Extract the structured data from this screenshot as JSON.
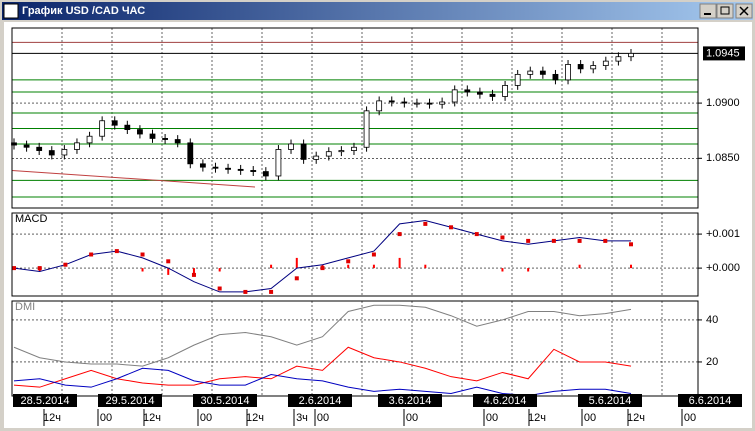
{
  "window": {
    "title": "График USD /CAD  ЧАС"
  },
  "chart_data": [
    {
      "type": "candlestick",
      "color": "#000000",
      "open": [
        1.0864,
        1.0862,
        1.086,
        1.0857,
        1.0853,
        1.0858,
        1.0864,
        1.087,
        1.0884,
        1.088,
        1.0876,
        1.0872,
        1.0868,
        1.0867,
        1.0864,
        1.0845,
        1.0842,
        1.0841,
        1.084,
        1.0839,
        1.0838,
        1.0834,
        1.0858,
        1.0863,
        1.0849,
        1.0852,
        1.0856,
        1.0857,
        1.086,
        1.0893,
        1.0902,
        1.0901,
        1.09,
        1.09,
        1.0899,
        1.0901,
        1.0912,
        1.091,
        1.0908,
        1.0906,
        1.0916,
        1.0926,
        1.0929,
        1.0926,
        1.0921,
        1.0935,
        1.0931,
        1.0934,
        1.0938,
        1.0942
      ],
      "high": [
        1.0868,
        1.0866,
        1.0864,
        1.0861,
        1.0862,
        1.0868,
        1.0874,
        1.0888,
        1.0888,
        1.0884,
        1.088,
        1.0876,
        1.0872,
        1.0871,
        1.0868,
        1.0849,
        1.0846,
        1.0845,
        1.0844,
        1.0843,
        1.0842,
        1.0862,
        1.0867,
        1.0867,
        1.0856,
        1.086,
        1.0861,
        1.0864,
        1.0897,
        1.0906,
        1.0906,
        1.0905,
        1.0904,
        1.0904,
        1.0905,
        1.0916,
        1.0916,
        1.0914,
        1.0912,
        1.092,
        1.093,
        1.0933,
        1.0933,
        1.093,
        1.0939,
        1.0939,
        1.0938,
        1.0942,
        1.0946,
        1.0949
      ],
      "low": [
        1.0858,
        1.0856,
        1.0853,
        1.0849,
        1.0849,
        1.0854,
        1.086,
        1.0866,
        1.0876,
        1.0872,
        1.0868,
        1.0864,
        1.0863,
        1.086,
        1.0841,
        1.0838,
        1.0837,
        1.0836,
        1.0835,
        1.0834,
        1.083,
        1.083,
        1.0854,
        1.0845,
        1.0845,
        1.0848,
        1.0852,
        1.0853,
        1.0856,
        1.0889,
        1.0897,
        1.0896,
        1.0896,
        1.0895,
        1.0895,
        1.0897,
        1.0906,
        1.0904,
        1.0902,
        1.0902,
        1.0912,
        1.0922,
        1.0922,
        1.0917,
        1.0917,
        1.0927,
        1.0927,
        1.093,
        1.0934,
        1.0938
      ],
      "close": [
        1.0862,
        1.086,
        1.0857,
        1.0853,
        1.0858,
        1.0864,
        1.087,
        1.0884,
        1.088,
        1.0876,
        1.0872,
        1.0868,
        1.0867,
        1.0864,
        1.0845,
        1.0842,
        1.0841,
        1.084,
        1.0839,
        1.0838,
        1.0834,
        1.0858,
        1.0863,
        1.0849,
        1.0852,
        1.0856,
        1.0857,
        1.086,
        1.0893,
        1.0902,
        1.0901,
        1.09,
        1.09,
        1.0899,
        1.0901,
        1.0912,
        1.091,
        1.0908,
        1.0906,
        1.0916,
        1.0926,
        1.0929,
        1.0926,
        1.0921,
        1.0935,
        1.0931,
        1.0934,
        1.0938,
        1.0942,
        1.0945
      ],
      "ylim": [
        1.0805,
        1.0968
      ],
      "yticks": [
        {
          "value": 1.09,
          "label": "1.0900"
        },
        {
          "value": 1.085,
          "label": "1.0850"
        }
      ],
      "last_price": 1.0945,
      "levels": [
        {
          "value": 1.0955,
          "color": "#a04040"
        },
        {
          "value": 1.0945,
          "color": "#000000"
        },
        {
          "value": 1.0921,
          "color": "#008000"
        },
        {
          "value": 1.091,
          "color": "#008000"
        },
        {
          "value": 1.0891,
          "color": "#008000"
        },
        {
          "value": 1.0877,
          "color": "#008000"
        },
        {
          "value": 1.0863,
          "color": "#008000"
        },
        {
          "value": 1.083,
          "color": "#008000"
        },
        {
          "value": 1.0815,
          "color": "#008000"
        }
      ],
      "trendline": {
        "values": [
          1.0839,
          1.0824
        ],
        "color": "#c04040"
      }
    },
    {
      "type": "line",
      "title": "MACD",
      "series": [
        {
          "color": "#ff0000",
          "style": "bars",
          "values": [
            0,
            -0.0001,
            0,
            0,
            0,
            -0.0001,
            -0.0002,
            -0.0002,
            -0.0001,
            0,
            0.0001,
            0.0003,
            0.0001,
            0.0001,
            0.0001,
            0.0003,
            0.0001,
            0,
            0,
            -0.0001,
            -0.0001,
            0,
            0.0001,
            0,
            0.0001
          ]
        },
        {
          "color": "#000080",
          "style": "line",
          "values": [
            0,
            -0.0001,
            0.0001,
            0.0004,
            0.0005,
            0.0003,
            0,
            -0.0004,
            -0.0007,
            -0.0007,
            -0.0006,
            0,
            0.0001,
            0.0003,
            0.0005,
            0.0013,
            0.0014,
            0.0012,
            0.001,
            0.0008,
            0.0007,
            0.0008,
            0.0009,
            0.0008,
            0.0008
          ]
        },
        {
          "color": "#e00000",
          "style": "dots",
          "values": [
            0,
            0,
            0.0001,
            0.0004,
            0.0005,
            0.0004,
            0.0002,
            -0.0002,
            -0.0006,
            -0.0007,
            -0.0007,
            -0.0003,
            0,
            0.0002,
            0.0004,
            0.001,
            0.0013,
            0.0012,
            0.001,
            0.0009,
            0.0008,
            0.0008,
            0.0008,
            0.0008,
            0.0007
          ]
        }
      ],
      "ylim": [
        -0.00082,
        0.00162
      ],
      "yticks": [
        {
          "value": 0.001,
          "label": "+0.001"
        },
        {
          "value": 0,
          "label": "+0.000"
        }
      ]
    },
    {
      "type": "line",
      "title": "DMI",
      "series": [
        {
          "color": "#808080",
          "style": "line",
          "values": [
            27,
            22,
            20,
            19,
            19,
            18,
            22,
            28,
            33,
            34,
            32,
            28,
            32,
            44,
            47,
            47,
            46,
            42,
            37,
            40,
            44,
            44,
            42,
            43,
            45
          ]
        },
        {
          "color": "#ff0000",
          "style": "line",
          "values": [
            9,
            8,
            12,
            16,
            12,
            10,
            9,
            9,
            12,
            13,
            12,
            18,
            16,
            27,
            22,
            20,
            17,
            13,
            11,
            15,
            12,
            26,
            20,
            20,
            18
          ]
        },
        {
          "color": "#0000c0",
          "style": "line",
          "values": [
            11,
            12,
            9,
            8,
            12,
            17,
            16,
            11,
            9,
            9,
            14,
            12,
            11,
            8,
            6,
            7,
            6,
            5,
            8,
            5,
            4,
            6,
            7,
            7,
            5
          ]
        }
      ],
      "ylim": [
        3.8,
        49
      ],
      "yticks": [
        40,
        20
      ]
    }
  ],
  "time_axis": {
    "dates": [
      "28.5.2014",
      "29.5.2014",
      "30.5.2014",
      "2.6.2014",
      "3.6.2014",
      "4.6.2014",
      "5.6.2014",
      "6.6.2014"
    ],
    "hours": [
      "12ч",
      "00",
      "12ч",
      "00",
      "12ч",
      "3ч",
      "00",
      "00",
      "00",
      "12ч",
      "00",
      "12ч",
      "00"
    ]
  }
}
